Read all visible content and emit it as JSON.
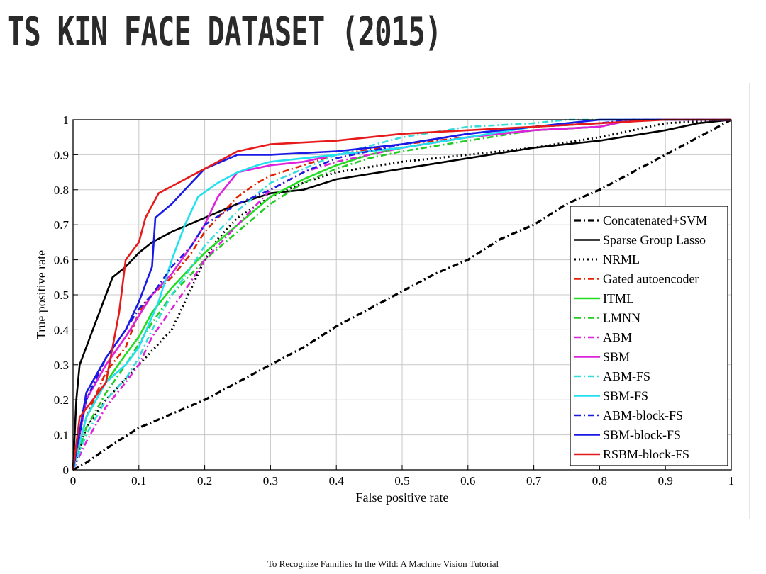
{
  "slide": {
    "title": "TS KIN FACE DATASET (2015)",
    "footer": "To Recognize Families In the Wild: A Machine Vision Tutorial"
  },
  "chart_data": {
    "type": "line",
    "title": "",
    "xlabel": "False positive rate",
    "ylabel": "True positive rate",
    "xlim": [
      0,
      1
    ],
    "ylim": [
      0,
      1
    ],
    "xticks": [
      "0",
      "0.1",
      "0.2",
      "0.3",
      "0.4",
      "0.5",
      "0.6",
      "0.7",
      "0.8",
      "0.9",
      "1"
    ],
    "yticks": [
      "0",
      "0.1",
      "0.2",
      "0.3",
      "0.4",
      "0.5",
      "0.6",
      "0.7",
      "0.8",
      "0.9",
      "1"
    ],
    "grid": true,
    "legend_position": "bottom-right",
    "series": [
      {
        "name": "Concatenated+SVM",
        "color": "#000000",
        "dash": "dashdot",
        "bold": true,
        "x": [
          0,
          0.02,
          0.05,
          0.1,
          0.15,
          0.2,
          0.25,
          0.3,
          0.35,
          0.4,
          0.45,
          0.5,
          0.55,
          0.6,
          0.65,
          0.7,
          0.75,
          0.8,
          0.85,
          0.9,
          0.95,
          1.0
        ],
        "y": [
          0,
          0.02,
          0.06,
          0.12,
          0.16,
          0.2,
          0.25,
          0.3,
          0.35,
          0.41,
          0.46,
          0.51,
          0.56,
          0.6,
          0.66,
          0.7,
          0.76,
          0.8,
          0.85,
          0.9,
          0.95,
          1.0
        ]
      },
      {
        "name": "Sparse Group Lasso",
        "color": "#000000",
        "dash": "solid",
        "x": [
          0,
          0.005,
          0.01,
          0.02,
          0.03,
          0.04,
          0.05,
          0.06,
          0.08,
          0.1,
          0.12,
          0.15,
          0.2,
          0.25,
          0.3,
          0.35,
          0.4,
          0.5,
          0.6,
          0.7,
          0.8,
          0.9,
          0.95,
          1.0
        ],
        "y": [
          0,
          0.2,
          0.3,
          0.35,
          0.4,
          0.45,
          0.5,
          0.55,
          0.58,
          0.62,
          0.65,
          0.68,
          0.72,
          0.76,
          0.79,
          0.8,
          0.83,
          0.86,
          0.89,
          0.92,
          0.94,
          0.97,
          0.99,
          1.0
        ]
      },
      {
        "name": "NRML",
        "color": "#000000",
        "dash": "dotted",
        "x": [
          0,
          0.02,
          0.05,
          0.1,
          0.13,
          0.15,
          0.18,
          0.2,
          0.22,
          0.25,
          0.3,
          0.35,
          0.4,
          0.5,
          0.6,
          0.7,
          0.8,
          0.85,
          0.9,
          1.0
        ],
        "y": [
          0,
          0.12,
          0.2,
          0.3,
          0.36,
          0.4,
          0.52,
          0.6,
          0.66,
          0.72,
          0.78,
          0.82,
          0.85,
          0.88,
          0.9,
          0.92,
          0.95,
          0.97,
          0.99,
          1.0
        ]
      },
      {
        "name": "Gated autoencoder",
        "color": "#e22200",
        "dash": "dashdot",
        "x": [
          0,
          0.02,
          0.05,
          0.08,
          0.1,
          0.12,
          0.15,
          0.18,
          0.2,
          0.22,
          0.25,
          0.28,
          0.3,
          0.35,
          0.4,
          0.5,
          0.6,
          0.7,
          0.8,
          0.85,
          1.0
        ],
        "y": [
          0,
          0.15,
          0.28,
          0.35,
          0.45,
          0.5,
          0.55,
          0.62,
          0.68,
          0.72,
          0.78,
          0.82,
          0.84,
          0.87,
          0.9,
          0.93,
          0.95,
          0.97,
          0.98,
          1.0,
          1.0
        ]
      },
      {
        "name": "ITML",
        "color": "#22dd22",
        "dash": "solid",
        "x": [
          0,
          0.02,
          0.05,
          0.08,
          0.1,
          0.12,
          0.15,
          0.18,
          0.2,
          0.25,
          0.3,
          0.35,
          0.4,
          0.45,
          0.5,
          0.6,
          0.7,
          0.8,
          0.85,
          1.0
        ],
        "y": [
          0,
          0.15,
          0.25,
          0.33,
          0.38,
          0.45,
          0.52,
          0.58,
          0.62,
          0.7,
          0.78,
          0.83,
          0.87,
          0.9,
          0.92,
          0.95,
          0.97,
          0.98,
          1.0,
          1.0
        ]
      },
      {
        "name": "LMNN",
        "color": "#22cc22",
        "dash": "dashdot",
        "x": [
          0,
          0.02,
          0.05,
          0.08,
          0.1,
          0.12,
          0.15,
          0.18,
          0.2,
          0.25,
          0.3,
          0.35,
          0.4,
          0.45,
          0.5,
          0.6,
          0.7,
          0.8,
          0.85,
          1.0
        ],
        "y": [
          0,
          0.12,
          0.22,
          0.3,
          0.36,
          0.42,
          0.5,
          0.56,
          0.6,
          0.68,
          0.76,
          0.82,
          0.86,
          0.89,
          0.91,
          0.94,
          0.97,
          0.98,
          1.0,
          1.0
        ]
      },
      {
        "name": "ABM",
        "color": "#dd22dd",
        "dash": "dashdot",
        "x": [
          0,
          0.02,
          0.05,
          0.08,
          0.1,
          0.12,
          0.15,
          0.18,
          0.2,
          0.25,
          0.3,
          0.35,
          0.4,
          0.5,
          0.6,
          0.7,
          0.8,
          0.85,
          1.0
        ],
        "y": [
          0,
          0.08,
          0.18,
          0.25,
          0.3,
          0.38,
          0.46,
          0.54,
          0.6,
          0.7,
          0.8,
          0.85,
          0.88,
          0.92,
          0.95,
          0.97,
          0.98,
          1.0,
          1.0
        ]
      },
      {
        "name": "SBM",
        "color": "#dd22dd",
        "dash": "solid",
        "x": [
          0,
          0.02,
          0.05,
          0.08,
          0.1,
          0.12,
          0.15,
          0.18,
          0.2,
          0.22,
          0.25,
          0.3,
          0.35,
          0.4,
          0.5,
          0.6,
          0.7,
          0.8,
          0.85,
          1.0
        ],
        "y": [
          0,
          0.2,
          0.3,
          0.38,
          0.44,
          0.5,
          0.56,
          0.64,
          0.7,
          0.78,
          0.85,
          0.87,
          0.88,
          0.9,
          0.92,
          0.95,
          0.97,
          0.98,
          1.0,
          1.0
        ]
      },
      {
        "name": "ABM-FS",
        "color": "#33dddd",
        "dash": "dashdot",
        "x": [
          0,
          0.02,
          0.05,
          0.08,
          0.1,
          0.12,
          0.15,
          0.18,
          0.2,
          0.25,
          0.3,
          0.35,
          0.4,
          0.5,
          0.6,
          0.7,
          0.75,
          1.0
        ],
        "y": [
          0,
          0.1,
          0.2,
          0.26,
          0.32,
          0.4,
          0.5,
          0.58,
          0.64,
          0.74,
          0.82,
          0.86,
          0.9,
          0.95,
          0.98,
          0.99,
          1.0,
          1.0
        ]
      },
      {
        "name": "SBM-FS",
        "color": "#22e0f0",
        "dash": "solid",
        "x": [
          0,
          0.02,
          0.05,
          0.08,
          0.1,
          0.13,
          0.15,
          0.17,
          0.19,
          0.22,
          0.25,
          0.28,
          0.3,
          0.4,
          0.5,
          0.6,
          0.7,
          0.8,
          1.0
        ],
        "y": [
          0,
          0.15,
          0.25,
          0.3,
          0.35,
          0.48,
          0.6,
          0.7,
          0.78,
          0.82,
          0.85,
          0.87,
          0.88,
          0.9,
          0.92,
          0.95,
          0.98,
          1.0,
          1.0
        ]
      },
      {
        "name": "ABM-block-FS",
        "color": "#1a1ae0",
        "dash": "dashdot",
        "x": [
          0,
          0.02,
          0.05,
          0.08,
          0.1,
          0.12,
          0.15,
          0.18,
          0.2,
          0.25,
          0.3,
          0.35,
          0.4,
          0.5,
          0.6,
          0.7,
          0.8,
          0.85,
          1.0
        ],
        "y": [
          0,
          0.2,
          0.32,
          0.4,
          0.46,
          0.5,
          0.58,
          0.64,
          0.7,
          0.76,
          0.8,
          0.85,
          0.89,
          0.93,
          0.96,
          0.98,
          0.99,
          1.0,
          1.0
        ]
      },
      {
        "name": "SBM-block-FS",
        "color": "#1a1ae6",
        "dash": "solid",
        "x": [
          0,
          0.02,
          0.05,
          0.08,
          0.1,
          0.12,
          0.125,
          0.15,
          0.18,
          0.2,
          0.25,
          0.3,
          0.4,
          0.5,
          0.6,
          0.7,
          0.8,
          0.9,
          1.0
        ],
        "y": [
          0,
          0.22,
          0.32,
          0.4,
          0.48,
          0.58,
          0.72,
          0.76,
          0.82,
          0.86,
          0.9,
          0.9,
          0.91,
          0.93,
          0.96,
          0.98,
          1.0,
          1.0,
          1.0
        ]
      },
      {
        "name": "RSBM-block-FS",
        "color": "#e61a1a",
        "dash": "solid",
        "x": [
          0,
          0.01,
          0.03,
          0.05,
          0.07,
          0.08,
          0.1,
          0.11,
          0.13,
          0.15,
          0.2,
          0.25,
          0.3,
          0.4,
          0.5,
          0.6,
          0.7,
          0.8,
          0.9,
          1.0
        ],
        "y": [
          0,
          0.15,
          0.2,
          0.25,
          0.45,
          0.6,
          0.65,
          0.72,
          0.79,
          0.81,
          0.86,
          0.91,
          0.93,
          0.94,
          0.96,
          0.97,
          0.98,
          0.99,
          1.0,
          1.0
        ]
      }
    ]
  }
}
